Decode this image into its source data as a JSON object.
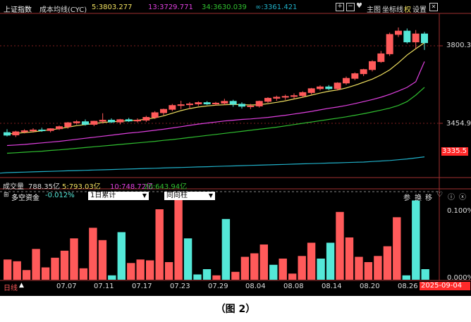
{
  "top_bar": {
    "index_name": "上证指数",
    "indicator": "成本均线(CYC)",
    "ma5_label": "5:3803.277",
    "ma13_label": "13:3729.771",
    "ma34_label": "34:3630.039",
    "ma_inf_label": "∞:3361.421",
    "btn_main": "主图",
    "btn_coord": "坐标线",
    "btn_rights": "权",
    "btn_settings": "设置"
  },
  "price_axis": {
    "label_high": "3800.3",
    "label_mid": "3454.9",
    "label_low": "3335.5"
  },
  "volume_bar": {
    "title": "成交量",
    "total": "788.35亿",
    "ma5": "5:793.03亿",
    "ma10": "10:748.72亿",
    "ma20": "20:643.94亿"
  },
  "fund_panel": {
    "title": "多空资金",
    "value": "-0.012%",
    "select1": "1日累计",
    "select2": "同向柱",
    "btn_params": "参",
    "btn_switch": "换",
    "btn_move": "移",
    "axis_top": "0.100%",
    "axis_bottom": "0.000%"
  },
  "bottom_bar": {
    "period": "日线",
    "dates": [
      "07.07",
      "07.11",
      "07.17",
      "07.23",
      "07.29",
      "08.04",
      "08.08",
      "08.14",
      "08.20",
      "08.26"
    ],
    "current_date": "2025-09-04"
  },
  "colors": {
    "up": "#ff5a5a",
    "down": "#54e8d8",
    "ma5": "#f0e060",
    "ma13": "#e040e0",
    "ma34": "#30c030",
    "ma_inf": "#20b0c8",
    "bg": "#000000"
  },
  "caption": "（图 2）",
  "chart_data": [
    {
      "type": "candlestick",
      "title": "上证指数",
      "series_note": "daily candles (open, high, low, close), index points",
      "candles": [
        [
          3455,
          3468,
          3440,
          3445
        ],
        [
          3446,
          3462,
          3438,
          3458
        ],
        [
          3458,
          3468,
          3452,
          3462
        ],
        [
          3462,
          3472,
          3455,
          3465
        ],
        [
          3465,
          3474,
          3458,
          3463
        ],
        [
          3463,
          3472,
          3456,
          3470
        ],
        [
          3470,
          3482,
          3465,
          3478
        ],
        [
          3478,
          3496,
          3470,
          3493
        ],
        [
          3493,
          3503,
          3486,
          3497
        ],
        [
          3497,
          3506,
          3482,
          3487
        ],
        [
          3487,
          3501,
          3480,
          3499
        ],
        [
          3499,
          3530,
          3492,
          3503
        ],
        [
          3503,
          3510,
          3492,
          3496
        ],
        [
          3496,
          3508,
          3487,
          3505
        ],
        [
          3505,
          3512,
          3496,
          3500
        ],
        [
          3500,
          3510,
          3494,
          3503
        ],
        [
          3503,
          3520,
          3496,
          3514
        ],
        [
          3514,
          3538,
          3508,
          3532
        ],
        [
          3532,
          3548,
          3522,
          3545
        ],
        [
          3545,
          3566,
          3538,
          3560
        ],
        [
          3560,
          3578,
          3546,
          3563
        ],
        [
          3563,
          3573,
          3546,
          3566
        ],
        [
          3566,
          3576,
          3558,
          3571
        ],
        [
          3571,
          3577,
          3562,
          3566
        ],
        [
          3566,
          3574,
          3560,
          3569
        ],
        [
          3569,
          3586,
          3562,
          3576
        ],
        [
          3576,
          3582,
          3555,
          3565
        ],
        [
          3565,
          3572,
          3548,
          3557
        ],
        [
          3557,
          3566,
          3546,
          3558
        ],
        [
          3558,
          3579,
          3552,
          3576
        ],
        [
          3576,
          3592,
          3570,
          3588
        ],
        [
          3588,
          3598,
          3578,
          3592
        ],
        [
          3592,
          3602,
          3582,
          3595
        ],
        [
          3595,
          3607,
          3586,
          3598
        ],
        [
          3598,
          3615,
          3590,
          3610
        ],
        [
          3610,
          3628,
          3603,
          3625
        ],
        [
          3625,
          3638,
          3618,
          3632
        ],
        [
          3632,
          3639,
          3620,
          3625
        ],
        [
          3625,
          3650,
          3618,
          3647
        ],
        [
          3647,
          3672,
          3640,
          3665
        ],
        [
          3665,
          3688,
          3658,
          3683
        ],
        [
          3683,
          3702,
          3674,
          3699
        ],
        [
          3699,
          3735,
          3692,
          3730
        ],
        [
          3730,
          3771,
          3725,
          3760
        ],
        [
          3760,
          3842,
          3752,
          3835
        ],
        [
          3835,
          3862,
          3825,
          3848
        ],
        [
          3848,
          3858,
          3800,
          3806
        ],
        [
          3806,
          3852,
          3780,
          3837
        ],
        [
          3837,
          3845,
          3775,
          3803
        ]
      ],
      "ma5": [
        3450,
        3452,
        3455,
        3458,
        3462,
        3466,
        3470,
        3476,
        3482,
        3486,
        3490,
        3494,
        3497,
        3499,
        3501,
        3503,
        3507,
        3512,
        3520,
        3530,
        3540,
        3548,
        3554,
        3558,
        3561,
        3563,
        3564,
        3563,
        3562,
        3563,
        3567,
        3572,
        3578,
        3585,
        3592,
        3600,
        3608,
        3615,
        3620,
        3628,
        3638,
        3650,
        3662,
        3678,
        3698,
        3725,
        3755,
        3780,
        3803
      ],
      "ma13": [
        3405,
        3407,
        3409,
        3412,
        3415,
        3418,
        3421,
        3425,
        3429,
        3433,
        3437,
        3441,
        3445,
        3449,
        3453,
        3456,
        3460,
        3464,
        3468,
        3473,
        3478,
        3483,
        3488,
        3492,
        3496,
        3500,
        3503,
        3506,
        3508,
        3511,
        3514,
        3518,
        3522,
        3527,
        3532,
        3537,
        3543,
        3549,
        3554,
        3560,
        3567,
        3575,
        3583,
        3592,
        3603,
        3616,
        3630,
        3652,
        3730
      ],
      "ma34": [
        3375,
        3377,
        3379,
        3381,
        3383,
        3386,
        3388,
        3391,
        3394,
        3397,
        3400,
        3403,
        3406,
        3409,
        3412,
        3415,
        3418,
        3421,
        3425,
        3428,
        3432,
        3436,
        3440,
        3444,
        3448,
        3452,
        3456,
        3460,
        3464,
        3468,
        3472,
        3476,
        3481,
        3486,
        3491,
        3496,
        3501,
        3506,
        3511,
        3516,
        3522,
        3528,
        3535,
        3542,
        3550,
        3560,
        3575,
        3600,
        3630
      ],
      "ma_inf": [
        3300,
        3301,
        3302,
        3303,
        3304,
        3305,
        3306,
        3307,
        3308,
        3309,
        3310,
        3311,
        3312,
        3313,
        3314,
        3315,
        3316,
        3317,
        3318,
        3319,
        3320,
        3321,
        3322,
        3323,
        3324,
        3325,
        3326,
        3327,
        3328,
        3329,
        3330,
        3331,
        3332,
        3333,
        3334,
        3335,
        3336,
        3337,
        3338,
        3339,
        3340,
        3341,
        3343,
        3345,
        3347,
        3350,
        3353,
        3357,
        3361
      ],
      "y_axis_labels": [
        3800.3,
        3454.9,
        3335.5
      ]
    },
    {
      "type": "bar",
      "title": "多空资金",
      "values": [
        0.023,
        0.021,
        0.011,
        0.035,
        0.014,
        0.025,
        0.033,
        0.047,
        0.013,
        0.059,
        0.045,
        0.005,
        0.054,
        0.019,
        0.023,
        0.022,
        0.08,
        0.02,
        0.1,
        0.047,
        0.006,
        0.012,
        0.005,
        0.069,
        0.009,
        0.026,
        0.03,
        0.04,
        0.017,
        0.024,
        0.007,
        0.027,
        0.042,
        0.024,
        0.042,
        0.077,
        0.048,
        0.026,
        0.02,
        0.027,
        0.038,
        0.071,
        0.005,
        0.09,
        0.012
      ],
      "direction": [
        "up",
        "up",
        "up",
        "up",
        "up",
        "up",
        "up",
        "up",
        "up",
        "up",
        "up",
        "down",
        "down",
        "up",
        "up",
        "up",
        "up",
        "up",
        "up",
        "down",
        "down",
        "down",
        "up",
        "down",
        "up",
        "up",
        "up",
        "up",
        "down",
        "up",
        "up",
        "up",
        "up",
        "down",
        "down",
        "up",
        "up",
        "up",
        "up",
        "up",
        "up",
        "up",
        "down",
        "down",
        "down"
      ],
      "ylim": [
        0,
        0.1
      ],
      "y_axis_labels": [
        "0.100%",
        "0.000%"
      ]
    }
  ]
}
